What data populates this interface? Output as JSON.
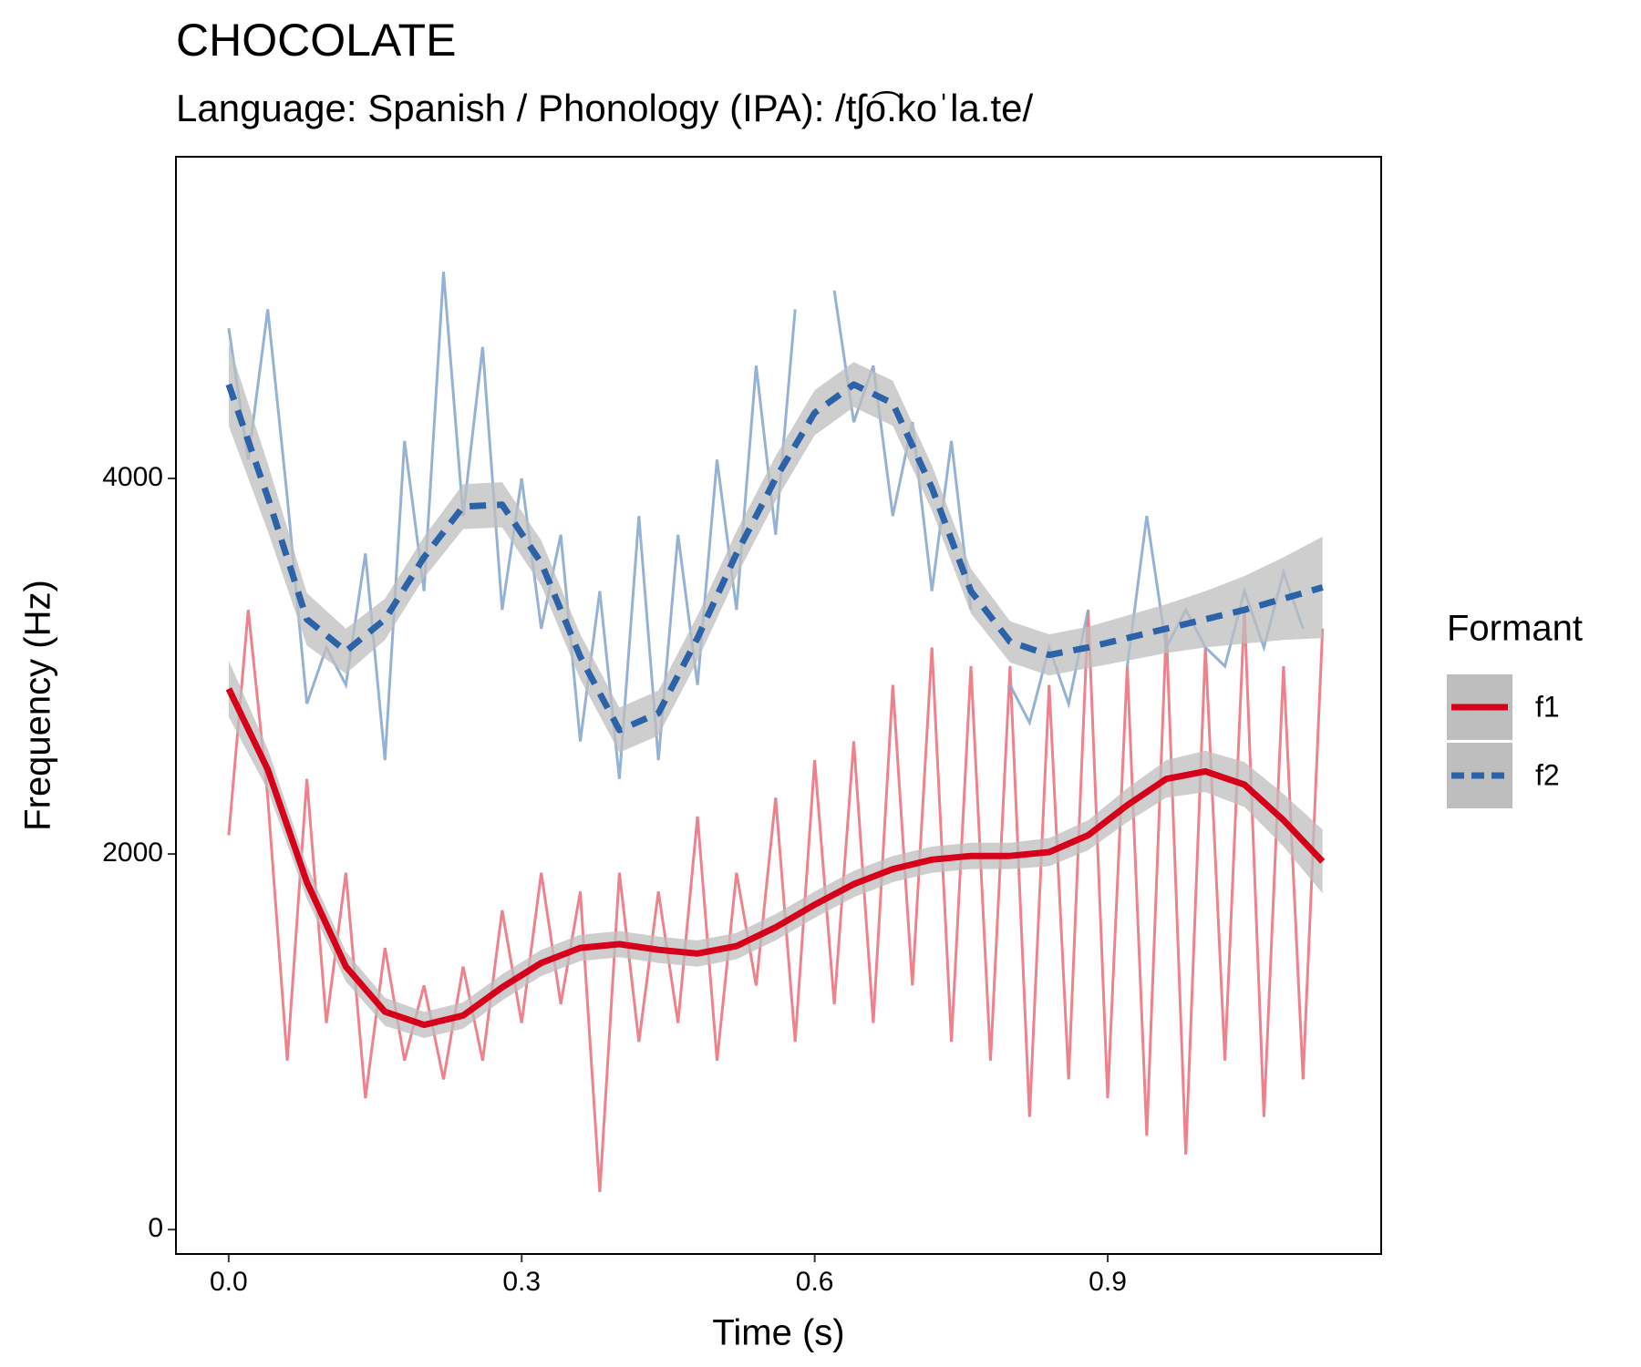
{
  "chart_data": {
    "type": "line",
    "title": "CHOCOLATE",
    "subtitle": "Language: Spanish / Phonology (IPA): /tʃo͡.koˈla.te/",
    "x_label": "Time (s)",
    "y_label": "Frequency (Hz)",
    "legend_title": "Formant",
    "xlim": [
      -0.054,
      1.18
    ],
    "ylim": [
      -130,
      5713
    ],
    "xticks": [
      {
        "value": 0,
        "label": "0.0"
      },
      0.3,
      0.6,
      0.9
    ],
    "yticks": [
      0,
      2000,
      4000
    ],
    "band_color": "#bebebe",
    "x": [
      0,
      0.02,
      0.04,
      0.06,
      0.08,
      0.1,
      0.12,
      0.14,
      0.16,
      0.18,
      0.2,
      0.22,
      0.24,
      0.26,
      0.28,
      0.3,
      0.32,
      0.34,
      0.36,
      0.38,
      0.4,
      0.42,
      0.44,
      0.46,
      0.48,
      0.5,
      0.52,
      0.54,
      0.56,
      0.58,
      0.6,
      0.62,
      0.64,
      0.66,
      0.68,
      0.7,
      0.72,
      0.74,
      0.76,
      0.78,
      0.8,
      0.82,
      0.84,
      0.86,
      0.88,
      0.9,
      0.92,
      0.94,
      0.96,
      0.98,
      1.0,
      1.02,
      1.04,
      1.06,
      1.08,
      1.1,
      1.12
    ],
    "smooth_x": [
      0,
      0.04,
      0.08,
      0.12,
      0.16,
      0.2,
      0.24,
      0.28,
      0.32,
      0.36,
      0.4,
      0.44,
      0.48,
      0.52,
      0.56,
      0.6,
      0.64,
      0.68,
      0.72,
      0.76,
      0.8,
      0.84,
      0.88,
      0.92,
      0.96,
      1.0,
      1.04,
      1.08,
      1.12
    ],
    "series": [
      {
        "name": "f1",
        "color": "#d7001a",
        "raw_color": "#ec7380",
        "dashed": false,
        "values": [
          2100,
          3300,
          2300,
          900,
          2400,
          1100,
          1900,
          700,
          1500,
          900,
          1300,
          800,
          1400,
          900,
          1700,
          1100,
          1900,
          1200,
          1800,
          200,
          1900,
          1000,
          1800,
          1100,
          2200,
          900,
          1900,
          1300,
          2300,
          1000,
          2500,
          1200,
          2600,
          1100,
          2900,
          1300,
          3100,
          1000,
          3000,
          900,
          3000,
          600,
          2900,
          800,
          3300,
          700,
          3000,
          500,
          3200,
          400,
          3100,
          900,
          3300,
          600,
          3000,
          800,
          3200
        ],
        "smooth": [
          2880,
          2450,
          1850,
          1400,
          1160,
          1090,
          1140,
          1290,
          1420,
          1500,
          1520,
          1490,
          1470,
          1510,
          1610,
          1730,
          1840,
          1920,
          1970,
          1990,
          1990,
          2010,
          2100,
          2260,
          2400,
          2440,
          2370,
          2180,
          1960
        ],
        "band": [
          150,
          110,
          90,
          80,
          75,
          70,
          70,
          70,
          70,
          70,
          70,
          70,
          70,
          70,
          70,
          70,
          70,
          70,
          70,
          70,
          70,
          75,
          80,
          90,
          100,
          110,
          120,
          140,
          170
        ]
      },
      {
        "name": "f2",
        "color": "#2b62a8",
        "raw_color": "#8aaad0",
        "dashed": true,
        "values": [
          4800,
          4100,
          4900,
          3900,
          2800,
          3100,
          2900,
          3600,
          2500,
          4200,
          3400,
          5100,
          3800,
          4700,
          3300,
          4000,
          3200,
          3700,
          2600,
          3400,
          2400,
          3800,
          2500,
          3700,
          2900,
          4100,
          3300,
          4600,
          3700,
          4900,
          null,
          5000,
          4300,
          4600,
          3800,
          4300,
          3400,
          4200,
          3300,
          null,
          2900,
          2700,
          3100,
          2800,
          3300,
          null,
          3000,
          3800,
          3100,
          3300,
          3100,
          3000,
          3400,
          3100,
          3500,
          3200,
          null
        ],
        "smooth": [
          4500,
          3900,
          3250,
          3080,
          3250,
          3580,
          3850,
          3860,
          3550,
          3050,
          2660,
          2750,
          3150,
          3600,
          4000,
          4350,
          4500,
          4400,
          3950,
          3400,
          3130,
          3060,
          3100,
          3150,
          3200,
          3250,
          3300,
          3360,
          3420
        ],
        "band": [
          220,
          180,
          140,
          120,
          110,
          110,
          120,
          120,
          120,
          120,
          120,
          120,
          120,
          120,
          120,
          120,
          120,
          120,
          120,
          120,
          110,
          110,
          110,
          120,
          130,
          150,
          180,
          220,
          270
        ]
      }
    ]
  }
}
